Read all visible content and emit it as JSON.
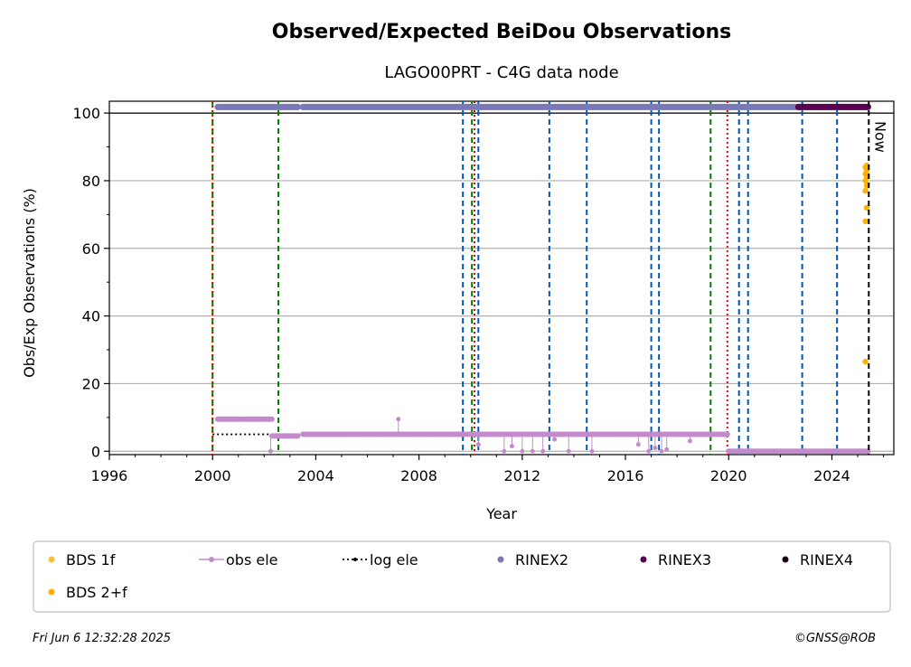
{
  "chart_data": {
    "type": "scatter",
    "title": "Observed/Expected BeiDou Observations",
    "subtitle": "LAGO00PRT - C4G data node",
    "xlabel": "Year",
    "ylabel": "Obs/Exp Observations (%)",
    "xlim": [
      1996.0,
      2026.4
    ],
    "ylim": [
      -1,
      103.5
    ],
    "x_ticks": [
      1996,
      2000,
      2004,
      2008,
      2012,
      2016,
      2020,
      2024
    ],
    "y_ticks": [
      0,
      20,
      40,
      60,
      80,
      100
    ],
    "grid": "horizontal",
    "reference_line": 100,
    "now_label": "Now",
    "now_year": 2025.43,
    "colors": {
      "bds1f": "#f9c235",
      "bds2f": "#ffb000",
      "obs_ele": "#c38bcc",
      "log_ele": "#000000",
      "rinex2": "#7b78b8",
      "rinex3": "#5a0051",
      "rinex4": "#1a0017",
      "red_line": "#ee0000",
      "green_line": "#008000",
      "blue_line": "#0058b0",
      "now_line": "#000000"
    },
    "vertical_lines": {
      "red": [
        2000.0,
        2010.15,
        2019.95
      ],
      "green": [
        2000.0,
        2002.55,
        2010.05,
        2019.3
      ],
      "blue": [
        2009.7,
        2010.3,
        2013.05,
        2014.5,
        2017.0,
        2017.3,
        2020.4,
        2020.75,
        2022.85,
        2024.2
      ]
    },
    "rinex2_segments": [
      [
        2000.2,
        2003.3
      ],
      [
        2003.5,
        2022.7
      ]
    ],
    "rinex2_y": 101.8,
    "rinex3_segments": [
      [
        2022.7,
        2025.4
      ]
    ],
    "rinex3_y": 101.8,
    "log_ele_segments": [
      {
        "x": [
          2000.0,
          2002.55
        ],
        "y": 5
      },
      {
        "x": [
          2002.55,
          2003.3
        ],
        "y": 4.5
      },
      {
        "x": [
          2003.3,
          2019.95
        ],
        "y": 5
      },
      {
        "x": [
          2019.95,
          2025.4
        ],
        "y": 0
      }
    ],
    "obs_ele_segments": [
      {
        "x": [
          2000.2,
          2002.3
        ],
        "y": 9.5
      },
      {
        "x": [
          2002.3,
          2003.3
        ],
        "y": 4.5
      },
      {
        "x": [
          2003.5,
          2019.95
        ],
        "y": 5
      },
      {
        "x": [
          2020.0,
          2025.4
        ],
        "y": 0
      }
    ],
    "obs_ele_outliers": [
      {
        "x": 2002.25,
        "y": 0
      },
      {
        "x": 2007.2,
        "y": 9.5
      },
      {
        "x": 2010.3,
        "y": 2
      },
      {
        "x": 2011.3,
        "y": 0
      },
      {
        "x": 2011.6,
        "y": 1.5
      },
      {
        "x": 2012.0,
        "y": 0
      },
      {
        "x": 2012.4,
        "y": 0
      },
      {
        "x": 2012.8,
        "y": 0
      },
      {
        "x": 2013.25,
        "y": 3.5
      },
      {
        "x": 2013.8,
        "y": 0
      },
      {
        "x": 2014.7,
        "y": 0
      },
      {
        "x": 2016.5,
        "y": 2
      },
      {
        "x": 2016.9,
        "y": 0
      },
      {
        "x": 2017.15,
        "y": 1
      },
      {
        "x": 2017.4,
        "y": 0
      },
      {
        "x": 2017.6,
        "y": 0.5
      },
      {
        "x": 2018.5,
        "y": 3
      }
    ],
    "bds2f_points": [
      {
        "x": 2025.3,
        "y": 26.5
      },
      {
        "x": 2025.3,
        "y": 68
      },
      {
        "x": 2025.35,
        "y": 72
      },
      {
        "x": 2025.3,
        "y": 77
      },
      {
        "x": 2025.35,
        "y": 78.5
      },
      {
        "x": 2025.3,
        "y": 80
      },
      {
        "x": 2025.35,
        "y": 81
      },
      {
        "x": 2025.3,
        "y": 82
      },
      {
        "x": 2025.35,
        "y": 83
      },
      {
        "x": 2025.3,
        "y": 84
      },
      {
        "x": 2025.35,
        "y": 84.5
      }
    ],
    "legend": {
      "placement": "bottom",
      "items": [
        {
          "label": "BDS 1f",
          "kind": "dot",
          "color": "#f9c235"
        },
        {
          "label": "obs ele",
          "kind": "obsline",
          "color": "#c38bcc"
        },
        {
          "label": "log ele",
          "kind": "logline",
          "color": "#000000"
        },
        {
          "label": "RINEX2",
          "kind": "dot",
          "color": "#7b78b8"
        },
        {
          "label": "RINEX3",
          "kind": "dot",
          "color": "#5a0051"
        },
        {
          "label": "RINEX4",
          "kind": "dot",
          "color": "#1a0017"
        },
        {
          "label": "BDS 2+f",
          "kind": "dot",
          "color": "#ffb000"
        }
      ]
    }
  },
  "footer": {
    "timestamp": "Fri Jun  6 12:32:28 2025",
    "copyright": "©GNSS@ROB"
  }
}
